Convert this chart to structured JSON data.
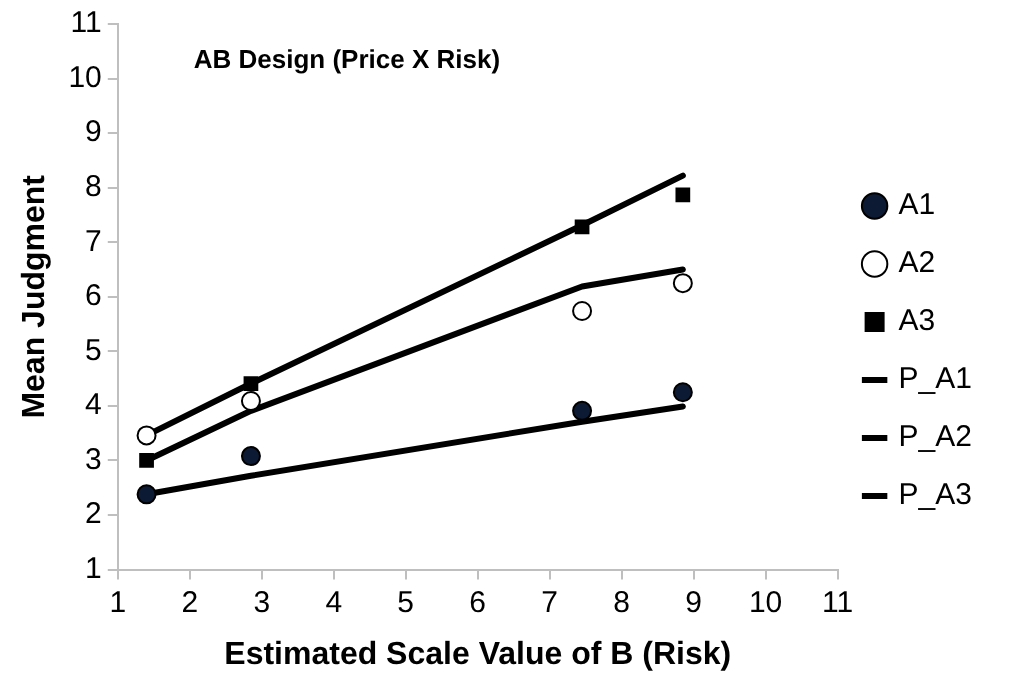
{
  "chart_data": {
    "type": "scatter",
    "title": "AB Design (Price X Risk)",
    "xlabel": "Estimated Scale Value of B (Risk)",
    "ylabel": "Mean Judgment",
    "xlim": [
      1,
      11
    ],
    "xticks": [
      1,
      2,
      3,
      4,
      5,
      6,
      7,
      8,
      9,
      10,
      11
    ],
    "ylim": [
      1,
      11
    ],
    "yticks": [
      1,
      2,
      3,
      4,
      5,
      6,
      7,
      8,
      9,
      10,
      11
    ],
    "grid": false,
    "legend": "right",
    "series": [
      {
        "name": "A1",
        "type": "scatter",
        "marker": "circle",
        "color": "#0d1a33",
        "x": [
          1.4,
          2.85,
          7.45,
          8.85
        ],
        "values": [
          2.38,
          3.08,
          3.91,
          4.25
        ]
      },
      {
        "name": "A2",
        "type": "scatter",
        "marker": "circle",
        "color": "#ffffff",
        "x": [
          1.4,
          2.85,
          7.45,
          8.85
        ],
        "values": [
          3.46,
          4.09,
          5.74,
          6.25
        ]
      },
      {
        "name": "A3",
        "type": "scatter",
        "marker": "square",
        "color": "#000000",
        "x": [
          1.4,
          2.85,
          7.45,
          8.85
        ],
        "values": [
          3.0,
          4.41,
          7.28,
          7.87
        ]
      },
      {
        "name": "P_A1",
        "type": "line",
        "marker": "none",
        "color": "#000000",
        "x": [
          1.4,
          2.85,
          7.45,
          8.85
        ],
        "values": [
          2.38,
          2.72,
          3.71,
          3.99
        ]
      },
      {
        "name": "P_A2",
        "type": "line",
        "marker": "none",
        "color": "#000000",
        "x": [
          1.4,
          2.85,
          7.45,
          8.85
        ],
        "values": [
          3.0,
          3.91,
          6.19,
          6.5
        ]
      },
      {
        "name": "P_A3",
        "type": "line",
        "marker": "none",
        "color": "#000000",
        "x": [
          1.4,
          2.85,
          7.45,
          8.85
        ],
        "values": [
          3.46,
          4.41,
          7.31,
          8.22
        ]
      }
    ]
  }
}
